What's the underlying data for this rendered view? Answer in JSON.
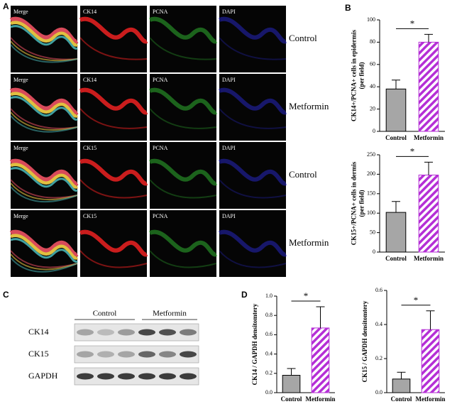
{
  "panel_labels": {
    "a": "A",
    "b": "B",
    "c": "C",
    "d": "D"
  },
  "panel_a": {
    "rows": [
      {
        "channels": [
          "Merge",
          "CK14",
          "PCNA",
          "DAPI"
        ],
        "condition": "Control"
      },
      {
        "channels": [
          "Merge",
          "CK14",
          "PCNA",
          "DAPI"
        ],
        "condition": "Metformin"
      },
      {
        "channels": [
          "Merge",
          "CK15",
          "PCNA",
          "DAPI"
        ],
        "condition": "Control"
      },
      {
        "channels": [
          "Merge",
          "CK15",
          "PCNA",
          "DAPI"
        ],
        "condition": "Metformin"
      }
    ]
  },
  "panel_c": {
    "groups": [
      "Control",
      "Metformin"
    ],
    "bands": [
      "CK14",
      "CK15",
      "GAPDH"
    ]
  },
  "chart_data": [
    {
      "type": "bar",
      "ylabel": [
        "CK14+/PCNA+ cells in epidermis",
        "(per field)"
      ],
      "categories": [
        "Control",
        "Metformin"
      ],
      "values": [
        38,
        80
      ],
      "errors": [
        8,
        7
      ],
      "colors": [
        "#a6a6a6",
        "#b52fd6"
      ],
      "hatch": [
        false,
        true
      ],
      "annotation": "*",
      "ylim": [
        0,
        100
      ],
      "yticks": [
        0,
        20,
        40,
        60,
        80,
        100
      ]
    },
    {
      "type": "bar",
      "ylabel": [
        "CK15+/PCNA+ cells in dermis",
        "(per field)"
      ],
      "categories": [
        "Control",
        "Metformin"
      ],
      "values": [
        102,
        198
      ],
      "errors": [
        28,
        33
      ],
      "colors": [
        "#a6a6a6",
        "#b52fd6"
      ],
      "hatch": [
        false,
        true
      ],
      "annotation": "*",
      "ylim": [
        0,
        250
      ],
      "yticks": [
        0,
        50,
        100,
        150,
        200,
        250
      ]
    },
    {
      "type": "bar",
      "ylabel": [
        "CK14 / GAPDH densitomtery"
      ],
      "categories": [
        "Control",
        "Metformin"
      ],
      "values": [
        0.18,
        0.67
      ],
      "errors": [
        0.07,
        0.22
      ],
      "colors": [
        "#a6a6a6",
        "#b52fd6"
      ],
      "hatch": [
        false,
        true
      ],
      "annotation": "*",
      "ylim": [
        0,
        1
      ],
      "yticks": [
        {
          "value": 0,
          "label": "0.0"
        },
        0.2,
        0.4,
        0.6,
        0.8,
        {
          "value": 1,
          "label": "1.0"
        }
      ]
    },
    {
      "type": "bar",
      "ylabel": [
        "CK15 / GAPDH densitomtery"
      ],
      "categories": [
        "Control",
        "Metformin"
      ],
      "values": [
        0.08,
        0.37
      ],
      "errors": [
        0.04,
        0.11
      ],
      "colors": [
        "#a6a6a6",
        "#b52fd6"
      ],
      "hatch": [
        false,
        true
      ],
      "annotation": "*",
      "ylim": [
        0,
        0.6
      ],
      "yticks": [
        {
          "value": 0,
          "label": "0.0"
        },
        0.2,
        0.4,
        0.6
      ]
    }
  ]
}
